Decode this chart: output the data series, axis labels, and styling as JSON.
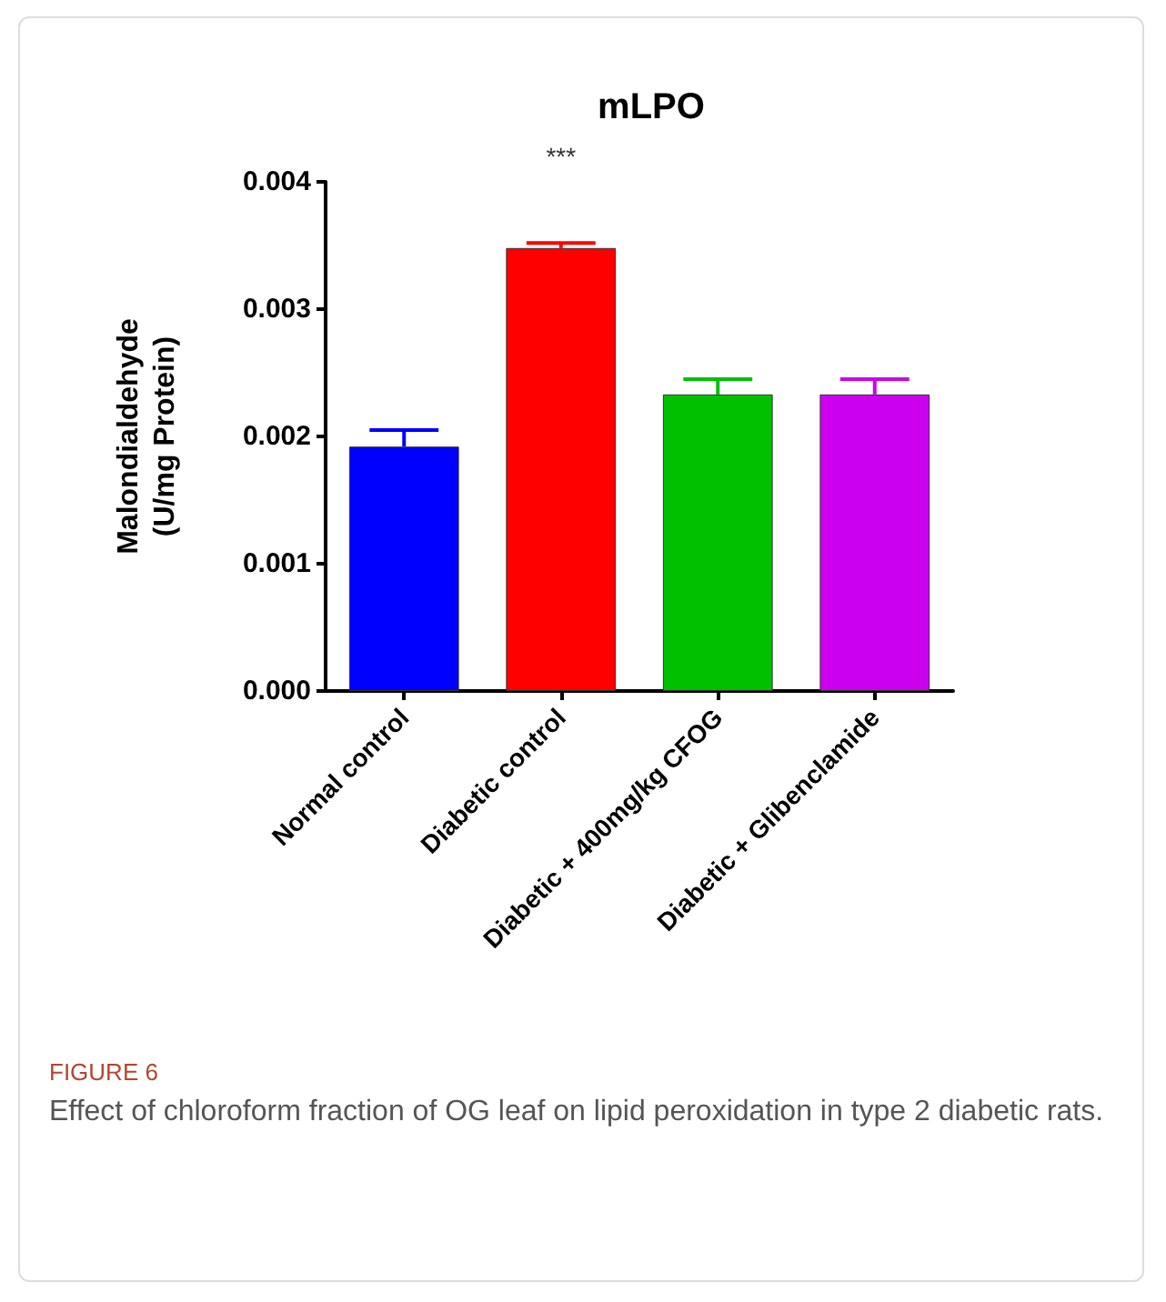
{
  "chart_data": {
    "type": "bar",
    "title": "mLPO",
    "ylabel": "Malondialdehyde\n(U/mg Protein)",
    "categories": [
      "Normal control",
      "Diabetic control",
      "Diabetic + 400mg/kg CFOG",
      "Diabetic + Glibenclamide"
    ],
    "values": [
      0.00192,
      0.00348,
      0.00233,
      0.00233
    ],
    "errors": [
      0.00013,
      4e-05,
      0.00012,
      0.00012
    ],
    "colors": [
      "#0000ff",
      "#ff0000",
      "#00c000",
      "#cc00ee"
    ],
    "ylim": [
      0,
      0.004
    ],
    "yticks": [
      {
        "value": 0,
        "label": "0.000"
      },
      {
        "value": 0.001,
        "label": "0.001"
      },
      {
        "value": 0.002,
        "label": "0.002"
      },
      {
        "value": 0.003,
        "label": "0.003"
      },
      {
        "value": 0.004,
        "label": "0.004"
      }
    ],
    "grid": false,
    "annotations": [
      {
        "text": "***",
        "x": "Diabetic control",
        "y": 0.00352
      },
      "FIGURE 6",
      "Effect of chloroform fraction of OG leaf on lipid peroxidation in type 2 diabetic rats."
    ]
  }
}
